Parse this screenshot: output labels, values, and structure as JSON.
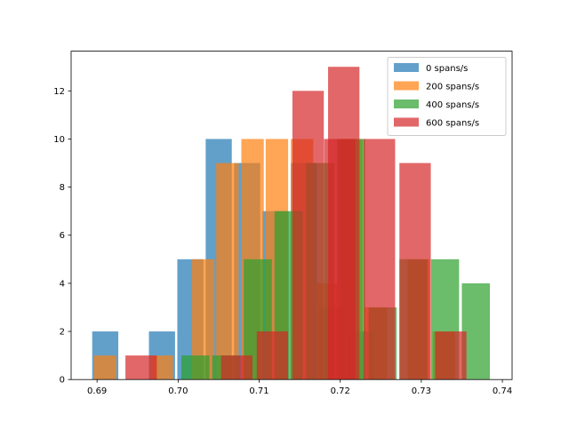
{
  "chart_data": {
    "type": "bar",
    "title": "",
    "xlabel": "",
    "ylabel": "",
    "xlim": [
      0.6868,
      0.7412
    ],
    "ylim": [
      0,
      13.65
    ],
    "xticks": [
      "0.69",
      "0.70",
      "0.71",
      "0.72",
      "0.73",
      "0.74"
    ],
    "xtick_values": [
      0.69,
      0.7,
      0.71,
      0.72,
      0.73,
      0.74
    ],
    "yticks": [
      "0",
      "2",
      "4",
      "6",
      "8",
      "10",
      "12"
    ],
    "ytick_values": [
      0,
      2,
      4,
      6,
      8,
      10,
      12
    ],
    "grid": false,
    "legend_position": "top-right",
    "series": [
      {
        "name": "0 spans/s",
        "color": "#1f77b4",
        "bin_width": 0.00322,
        "bins": [
          {
            "x0": 0.6894,
            "count": 2
          },
          {
            "x0": 0.6964,
            "count": 2
          },
          {
            "x0": 0.6999,
            "count": 5
          },
          {
            "x0": 0.7034,
            "count": 10
          },
          {
            "x0": 0.7069,
            "count": 9
          },
          {
            "x0": 0.7104,
            "count": 7
          },
          {
            "x0": 0.7139,
            "count": 9
          },
          {
            "x0": 0.7174,
            "count": 3
          },
          {
            "x0": 0.7209,
            "count": 2
          }
        ]
      },
      {
        "name": "200 spans/s",
        "color": "#ff7f0e",
        "bin_width": 0.00277,
        "bins": [
          {
            "x0": 0.6896,
            "count": 1
          },
          {
            "x0": 0.6966,
            "count": 1
          },
          {
            "x0": 0.7017,
            "count": 5
          },
          {
            "x0": 0.7047,
            "count": 9
          },
          {
            "x0": 0.7078,
            "count": 10
          },
          {
            "x0": 0.7108,
            "count": 10
          },
          {
            "x0": 0.7139,
            "count": 10
          },
          {
            "x0": 0.7169,
            "count": 4
          },
          {
            "x0": 0.72,
            "count": 10
          },
          {
            "x0": 0.723,
            "count": 3
          },
          {
            "x0": 0.7283,
            "count": 5
          },
          {
            "x0": 0.7314,
            "count": 2
          }
        ]
      },
      {
        "name": "400 spans/s",
        "color": "#2ca02c",
        "bin_width": 0.00346,
        "bins": [
          {
            "x0": 0.7004,
            "count": 1
          },
          {
            "x0": 0.7042,
            "count": 1
          },
          {
            "x0": 0.7081,
            "count": 5
          },
          {
            "x0": 0.7119,
            "count": 7
          },
          {
            "x0": 0.7158,
            "count": 9
          },
          {
            "x0": 0.7196,
            "count": 10
          },
          {
            "x0": 0.7235,
            "count": 3
          },
          {
            "x0": 0.7273,
            "count": 5
          },
          {
            "x0": 0.7312,
            "count": 5
          },
          {
            "x0": 0.735,
            "count": 4
          }
        ]
      },
      {
        "name": "600 spans/s",
        "color": "#d62728",
        "bin_width": 0.00387,
        "bins": [
          {
            "x0": 0.6935,
            "count": 1
          },
          {
            "x0": 0.7053,
            "count": 1
          },
          {
            "x0": 0.7097,
            "count": 2
          },
          {
            "x0": 0.7141,
            "count": 12
          },
          {
            "x0": 0.7185,
            "count": 13
          },
          {
            "x0": 0.7229,
            "count": 10
          },
          {
            "x0": 0.7273,
            "count": 9
          },
          {
            "x0": 0.7317,
            "count": 2
          },
          {
            "x0": 0.718,
            "count": 10
          }
        ]
      }
    ]
  }
}
